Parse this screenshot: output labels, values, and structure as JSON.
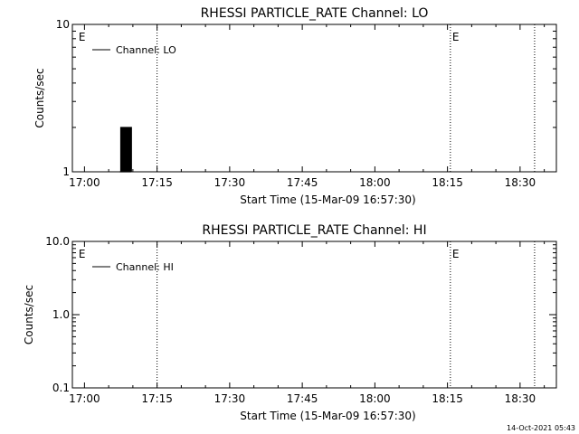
{
  "footer_timestamp": "14-Oct-2021 05:43",
  "chart_data": [
    {
      "type": "line",
      "title": "RHESSI PARTICLE_RATE Channel: LO",
      "xlabel": "Start Time (15-Mar-09 16:57:30)",
      "ylabel": "Counts/sec",
      "x_ticks": [
        "17:00",
        "17:15",
        "17:30",
        "17:45",
        "18:00",
        "18:15",
        "18:30"
      ],
      "x_tick_minutes": [
        0,
        15,
        30,
        45,
        60,
        75,
        90
      ],
      "xlim_minutes": [
        -2.5,
        97.5
      ],
      "y_scale": "log",
      "ylim": [
        1,
        10
      ],
      "y_ticks": [
        {
          "value": 1,
          "label": "1"
        },
        {
          "value": 10,
          "label": "10"
        }
      ],
      "legend": {
        "label": "Channel: LO",
        "position": "top-left"
      },
      "markers": [
        {
          "minute": -1.6,
          "label": "E"
        },
        {
          "minute": 15.0,
          "label": ""
        },
        {
          "minute": 75.6,
          "label": "E"
        },
        {
          "minute": 93.0,
          "label": ""
        }
      ],
      "series": [
        {
          "x_minutes": [
            7.4,
            7.6,
            7.8,
            8.0,
            8.2,
            8.4,
            8.6,
            8.8,
            9.0,
            9.2,
            9.4,
            9.6
          ],
          "values": [
            1,
            2,
            1,
            2,
            1,
            2,
            1,
            2,
            1,
            2,
            1,
            2
          ]
        }
      ]
    },
    {
      "type": "line",
      "title": "RHESSI PARTICLE_RATE Channel: HI",
      "xlabel": "Start Time (15-Mar-09 16:57:30)",
      "ylabel": "Counts/sec",
      "x_ticks": [
        "17:00",
        "17:15",
        "17:30",
        "17:45",
        "18:00",
        "18:15",
        "18:30"
      ],
      "x_tick_minutes": [
        0,
        15,
        30,
        45,
        60,
        75,
        90
      ],
      "xlim_minutes": [
        -2.5,
        97.5
      ],
      "y_scale": "log",
      "ylim": [
        0.1,
        10
      ],
      "y_ticks": [
        {
          "value": 0.1,
          "label": "0.1"
        },
        {
          "value": 1,
          "label": "1.0"
        },
        {
          "value": 10,
          "label": "10.0"
        }
      ],
      "legend": {
        "label": "Channel: HI",
        "position": "top-left"
      },
      "markers": [
        {
          "minute": -1.6,
          "label": "E"
        },
        {
          "minute": 15.0,
          "label": ""
        },
        {
          "minute": 75.6,
          "label": "E"
        },
        {
          "minute": 93.0,
          "label": ""
        }
      ],
      "series": [
        {
          "x_minutes": [],
          "values": []
        }
      ]
    }
  ]
}
